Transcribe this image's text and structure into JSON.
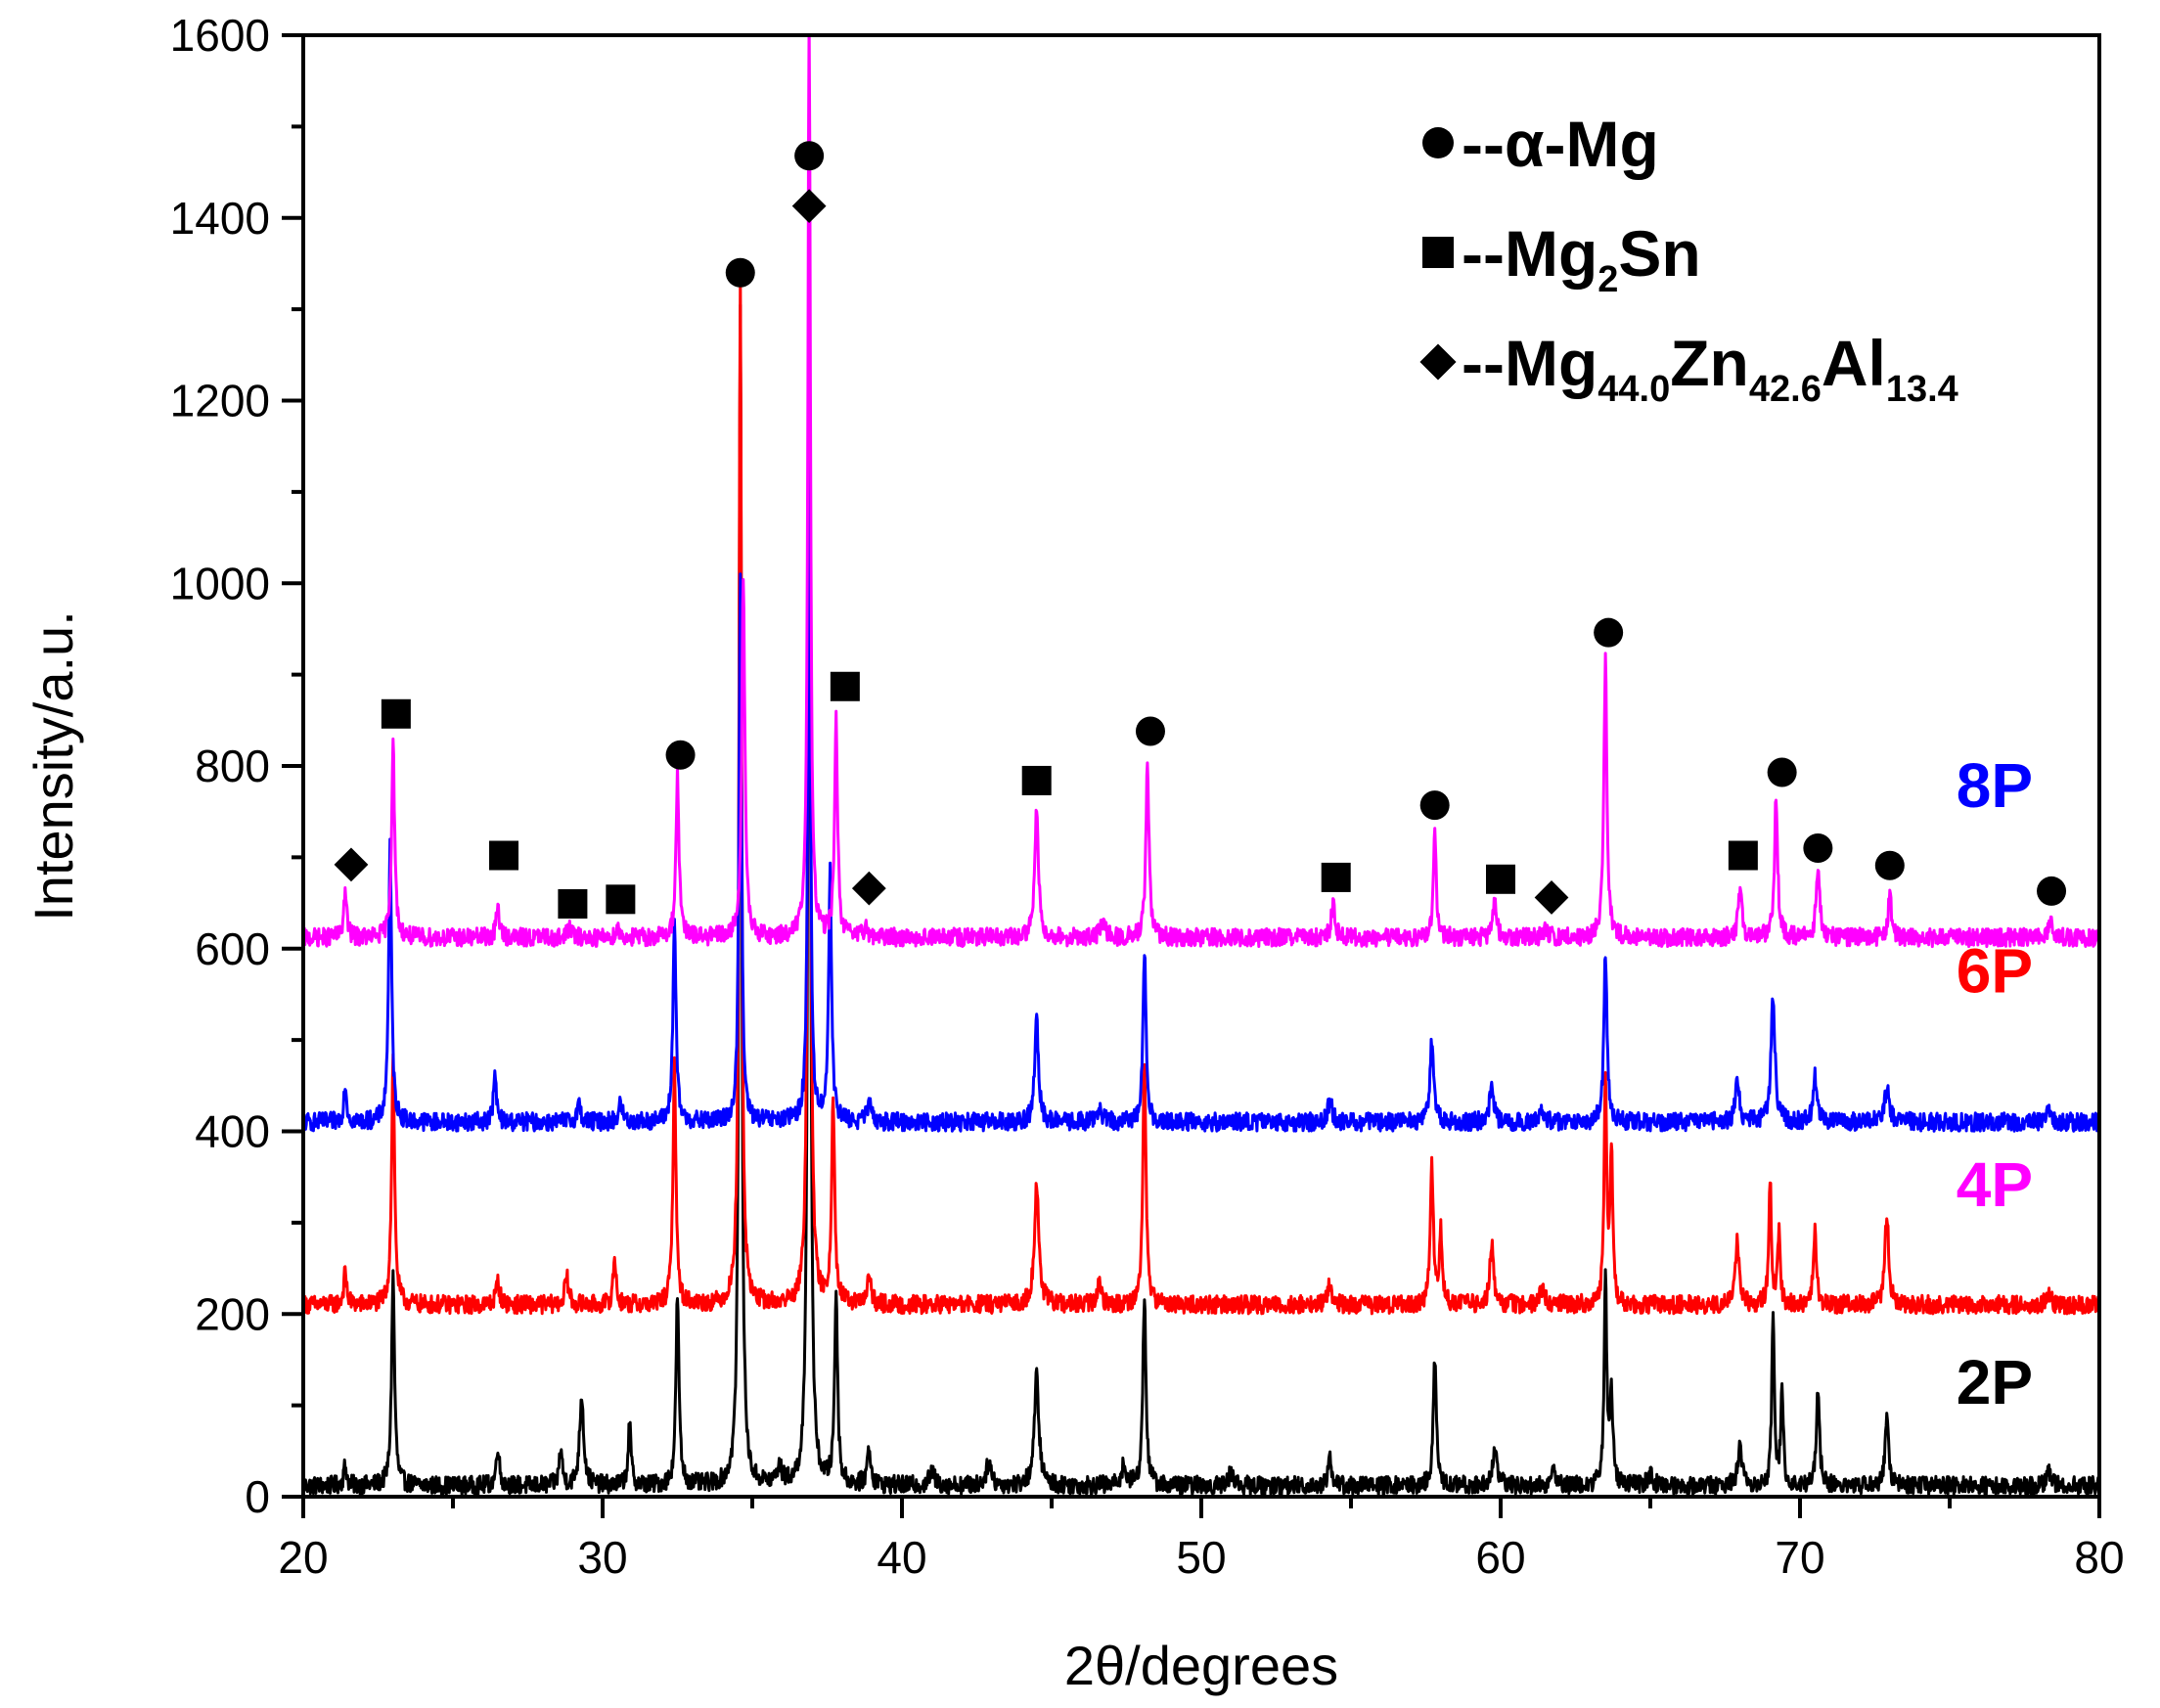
{
  "chart_data": {
    "type": "line",
    "title": "",
    "xlabel": "2θ/degrees",
    "ylabel": "Intensity/a.u.",
    "xlim": [
      20,
      80
    ],
    "ylim": [
      0,
      1600
    ],
    "x_ticks": [
      20,
      30,
      40,
      50,
      60,
      70,
      80
    ],
    "y_ticks": [
      0,
      200,
      400,
      600,
      800,
      1000,
      1200,
      1400,
      1600
    ],
    "baseline_noise": 10,
    "series": [
      {
        "name": "2P",
        "color": "#000000",
        "offset": 12,
        "peaks": [
          [
            21.4,
            22,
            0.12
          ],
          [
            23.0,
            230,
            0.12
          ],
          [
            26.5,
            45,
            0.12
          ],
          [
            28.6,
            40,
            0.12
          ],
          [
            29.3,
            100,
            0.16
          ],
          [
            30.9,
            65,
            0.12
          ],
          [
            32.5,
            210,
            0.12
          ],
          [
            34.6,
            1300,
            0.1
          ],
          [
            35.9,
            18,
            0.2
          ],
          [
            36.9,
            1400,
            0.1
          ],
          [
            37.8,
            210,
            0.12
          ],
          [
            38.9,
            40,
            0.15
          ],
          [
            41.0,
            15,
            0.2
          ],
          [
            42.9,
            25,
            0.2
          ],
          [
            44.5,
            120,
            0.18
          ],
          [
            47.4,
            20,
            0.2
          ],
          [
            48.1,
            210,
            0.12
          ],
          [
            51.0,
            15,
            0.2
          ],
          [
            54.3,
            30,
            0.15
          ],
          [
            57.8,
            140,
            0.12
          ],
          [
            59.8,
            40,
            0.18
          ],
          [
            61.8,
            15,
            0.2
          ],
          [
            63.5,
            230,
            0.1
          ],
          [
            63.7,
            100,
            0.12
          ],
          [
            65.0,
            12,
            0.2
          ],
          [
            68.0,
            50,
            0.15
          ],
          [
            69.1,
            180,
            0.1
          ],
          [
            69.4,
            110,
            0.1
          ],
          [
            70.6,
            110,
            0.12
          ],
          [
            72.9,
            70,
            0.15
          ],
          [
            78.3,
            15,
            0.2
          ]
        ]
      },
      {
        "name": "4P",
        "color": "#ff0000",
        "offset": 210,
        "peaks": [
          [
            21.4,
            35,
            0.12
          ],
          [
            23.0,
            270,
            0.12
          ],
          [
            26.5,
            25,
            0.15
          ],
          [
            28.8,
            30,
            0.15
          ],
          [
            30.4,
            50,
            0.12
          ],
          [
            32.4,
            260,
            0.12
          ],
          [
            34.6,
            1120,
            0.1
          ],
          [
            36.9,
            1240,
            0.1
          ],
          [
            37.7,
            230,
            0.12
          ],
          [
            38.9,
            30,
            0.15
          ],
          [
            44.5,
            130,
            0.18
          ],
          [
            46.6,
            25,
            0.15
          ],
          [
            48.1,
            270,
            0.12
          ],
          [
            54.3,
            25,
            0.15
          ],
          [
            57.7,
            150,
            0.12
          ],
          [
            58.0,
            80,
            0.12
          ],
          [
            59.7,
            65,
            0.15
          ],
          [
            61.4,
            18,
            0.2
          ],
          [
            63.5,
            250,
            0.1
          ],
          [
            63.7,
            170,
            0.1
          ],
          [
            67.9,
            70,
            0.15
          ],
          [
            69.0,
            140,
            0.1
          ],
          [
            69.3,
            80,
            0.1
          ],
          [
            70.5,
            80,
            0.12
          ],
          [
            72.9,
            100,
            0.15
          ],
          [
            78.3,
            10,
            0.2
          ]
        ]
      },
      {
        "name": "6P",
        "color": "#0000ff",
        "offset": 410,
        "peaks": [
          [
            21.4,
            40,
            0.12
          ],
          [
            22.9,
            300,
            0.12
          ],
          [
            26.4,
            50,
            0.12
          ],
          [
            29.2,
            20,
            0.15
          ],
          [
            30.6,
            20,
            0.15
          ],
          [
            32.4,
            220,
            0.12
          ],
          [
            34.6,
            600,
            0.1
          ],
          [
            36.9,
            720,
            0.1
          ],
          [
            37.6,
            270,
            0.12
          ],
          [
            38.9,
            20,
            0.15
          ],
          [
            44.5,
            110,
            0.15
          ],
          [
            46.6,
            15,
            0.2
          ],
          [
            48.1,
            190,
            0.12
          ],
          [
            54.3,
            25,
            0.15
          ],
          [
            57.7,
            90,
            0.15
          ],
          [
            59.7,
            45,
            0.15
          ],
          [
            61.4,
            10,
            0.2
          ],
          [
            63.5,
            190,
            0.12
          ],
          [
            67.9,
            50,
            0.15
          ],
          [
            69.1,
            140,
            0.15
          ],
          [
            70.5,
            50,
            0.15
          ],
          [
            72.9,
            35,
            0.2
          ],
          [
            78.3,
            10,
            0.2
          ]
        ]
      },
      {
        "name": "8P",
        "color": "#ff00ff",
        "offset": 612,
        "peaks": [
          [
            21.4,
            50,
            0.12
          ],
          [
            23.0,
            215,
            0.12
          ],
          [
            26.5,
            35,
            0.12
          ],
          [
            28.9,
            12,
            0.15
          ],
          [
            30.5,
            10,
            0.15
          ],
          [
            32.5,
            180,
            0.12
          ],
          [
            34.7,
            400,
            0.12
          ],
          [
            36.9,
            1000,
            0.1
          ],
          [
            37.8,
            235,
            0.12
          ],
          [
            38.8,
            12,
            0.15
          ],
          [
            44.5,
            140,
            0.15
          ],
          [
            46.7,
            15,
            0.2
          ],
          [
            48.2,
            195,
            0.12
          ],
          [
            54.4,
            35,
            0.15
          ],
          [
            57.8,
            110,
            0.12
          ],
          [
            59.8,
            40,
            0.15
          ],
          [
            61.5,
            10,
            0.2
          ],
          [
            63.5,
            305,
            0.12
          ],
          [
            68.0,
            50,
            0.15
          ],
          [
            69.2,
            160,
            0.12
          ],
          [
            70.6,
            70,
            0.15
          ],
          [
            73.0,
            45,
            0.15
          ],
          [
            78.4,
            15,
            0.2
          ]
        ]
      }
    ],
    "series_labels": [
      {
        "text": "8P",
        "color": "#0000ff",
        "x": 76.5,
        "y": 755
      },
      {
        "text": "6P",
        "color": "#ff0000",
        "x": 76.5,
        "y": 552
      },
      {
        "text": "4P",
        "color": "#ff00ff",
        "x": 76.5,
        "y": 318
      },
      {
        "text": "2P",
        "color": "#000000",
        "x": 76.5,
        "y": 102
      }
    ],
    "markers": {
      "alpha_mg": [
        [
          32.6,
          812
        ],
        [
          34.6,
          1340
        ],
        [
          36.9,
          1468
        ],
        [
          48.3,
          838
        ],
        [
          57.8,
          757
        ],
        [
          63.6,
          946
        ],
        [
          69.4,
          793
        ],
        [
          70.6,
          710
        ],
        [
          73.0,
          691
        ],
        [
          78.4,
          663
        ]
      ],
      "mg2sn": [
        [
          23.1,
          857
        ],
        [
          26.7,
          702
        ],
        [
          29.0,
          649
        ],
        [
          30.6,
          654
        ],
        [
          38.1,
          887
        ],
        [
          44.5,
          784
        ],
        [
          54.5,
          678
        ],
        [
          60.0,
          676
        ],
        [
          68.1,
          702
        ]
      ],
      "mg44zn": [
        [
          21.6,
          692
        ],
        [
          36.9,
          1413
        ],
        [
          38.9,
          666
        ],
        [
          61.7,
          656
        ]
      ]
    },
    "legend": {
      "position": "top-right",
      "entries": [
        {
          "marker": "circle",
          "prefix": "--",
          "text": "α-Mg"
        },
        {
          "marker": "square",
          "prefix": "--",
          "parts": [
            [
              "Mg",
              false
            ],
            [
              "2",
              true
            ],
            [
              "Sn",
              false
            ]
          ]
        },
        {
          "marker": "diamond",
          "prefix": "--",
          "parts": [
            [
              "Mg",
              false
            ],
            [
              "44.0",
              true
            ],
            [
              "Zn",
              false
            ],
            [
              "42.6",
              true
            ],
            [
              "Al",
              false
            ],
            [
              "13.4",
              true
            ]
          ]
        }
      ]
    }
  }
}
